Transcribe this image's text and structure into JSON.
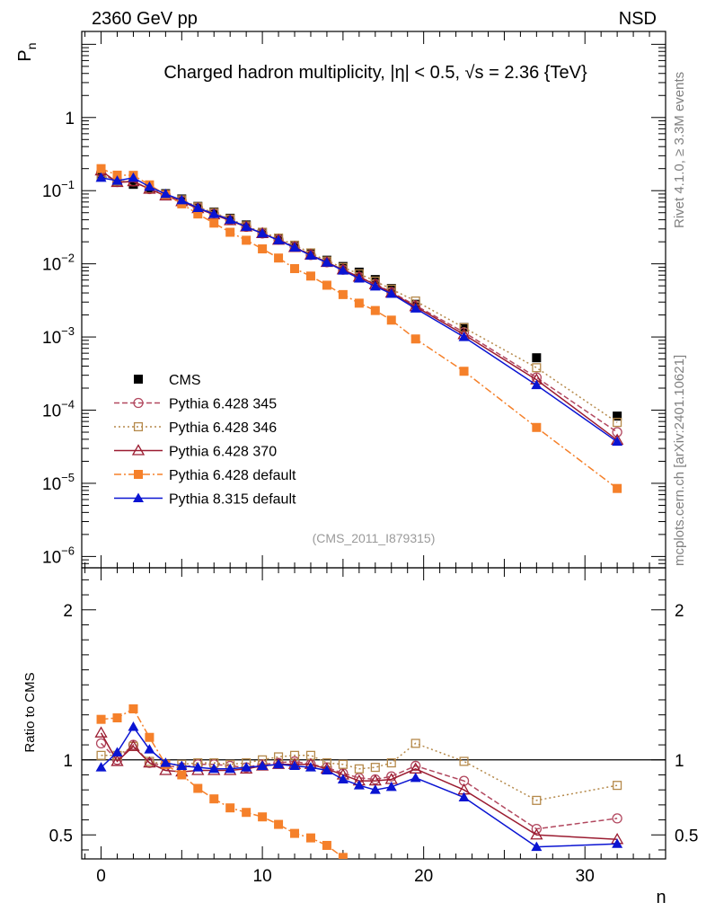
{
  "header": {
    "left": "2360 GeV pp",
    "right": "NSD",
    "side_rivet": "Rivet 4.1.0, ≥ 3.3M events",
    "side_mcplots": "mcplots.cern.ch [arXiv:2401.10621]",
    "analysis_id": "(CMS_2011_I879315)"
  },
  "chart_data": [
    {
      "type": "scatter",
      "title": "Charged hadron multiplicity, |η| < 0.5, √s = 2.36 {TeV}",
      "xlabel": "n",
      "ylabel": "Pn",
      "yscale": "log",
      "xlim": [
        -1.2,
        35
      ],
      "ylim": [
        7e-07,
        15
      ],
      "x_ticks": [
        0,
        10,
        20,
        30
      ],
      "y_ticks": [
        {
          "value": 1e-06,
          "label": "10^-6"
        },
        {
          "value": 1e-05,
          "label": "10^-5"
        },
        {
          "value": 0.0001,
          "label": "10^-4"
        },
        {
          "value": 0.001,
          "label": "10^-3"
        },
        {
          "value": 0.01,
          "label": "10^-2"
        },
        {
          "value": 0.1,
          "label": "10^-1"
        },
        {
          "value": 1,
          "label": "1"
        }
      ],
      "legend_position": "lower-left",
      "series": [
        {
          "name": "CMS",
          "color": "#000000",
          "line": "none",
          "marker": "square-filled",
          "x": [
            0,
            1,
            2,
            3,
            4,
            5,
            6,
            7,
            8,
            9,
            10,
            11,
            12,
            13,
            14,
            15,
            16,
            17,
            18,
            19.5,
            22.5,
            27,
            32
          ],
          "y": [
            0.158,
            0.131,
            0.122,
            0.107,
            0.091,
            0.077,
            0.061,
            0.051,
            0.042,
            0.034,
            0.027,
            0.022,
            0.0175,
            0.0137,
            0.0112,
            0.0092,
            0.0077,
            0.0061,
            0.0046,
            0.0028,
            0.00135,
            0.00052,
            8.3e-05
          ]
        },
        {
          "name": "Pythia 6.428 345",
          "color": "#b2485f",
          "line": "dashed",
          "marker": "circle-open",
          "x": [
            0,
            1,
            2,
            3,
            4,
            5,
            6,
            7,
            8,
            9,
            10,
            11,
            12,
            13,
            14,
            15,
            16,
            17,
            18,
            19.5,
            22.5,
            27,
            32
          ],
          "y": [
            0.176,
            0.131,
            0.134,
            0.105,
            0.087,
            0.073,
            0.059,
            0.049,
            0.04,
            0.032,
            0.026,
            0.0215,
            0.0172,
            0.0132,
            0.0105,
            0.0083,
            0.0066,
            0.0053,
            0.0041,
            0.0027,
            0.00116,
            0.00028,
            5e-05
          ]
        },
        {
          "name": "Pythia 6.428 346",
          "color": "#b5894a",
          "line": "dotted",
          "marker": "square-open",
          "x": [
            0,
            1,
            2,
            3,
            4,
            5,
            6,
            7,
            8,
            9,
            10,
            11,
            12,
            13,
            14,
            15,
            16,
            17,
            18,
            19.5,
            22.5,
            27,
            32
          ],
          "y": [
            0.163,
            0.135,
            0.133,
            0.106,
            0.088,
            0.075,
            0.06,
            0.05,
            0.041,
            0.033,
            0.027,
            0.0225,
            0.018,
            0.0141,
            0.0109,
            0.0089,
            0.0073,
            0.0058,
            0.0045,
            0.0031,
            0.00134,
            0.00038,
            6.8e-05
          ]
        },
        {
          "name": "Pythia 6.428 370",
          "color": "#9b1c31",
          "line": "solid",
          "marker": "triangle-open",
          "x": [
            0,
            1,
            2,
            3,
            4,
            5,
            6,
            7,
            8,
            9,
            10,
            11,
            12,
            13,
            14,
            15,
            16,
            17,
            18,
            19.5,
            22.5,
            27,
            32
          ],
          "y": [
            0.187,
            0.13,
            0.133,
            0.105,
            0.085,
            0.071,
            0.057,
            0.047,
            0.039,
            0.032,
            0.026,
            0.0211,
            0.0168,
            0.0132,
            0.0105,
            0.0083,
            0.0066,
            0.0052,
            0.004,
            0.0026,
            0.00108,
            0.00026,
            3.9e-05
          ]
        },
        {
          "name": "Pythia 6.428 default",
          "color": "#f5802a",
          "line": "dashdot",
          "marker": "square-filled",
          "x": [
            0,
            1,
            2,
            3,
            4,
            5,
            6,
            7,
            8,
            9,
            10,
            11,
            12,
            13,
            14,
            15,
            16,
            17,
            18,
            19.5,
            22.5,
            27,
            32
          ],
          "y": [
            0.2,
            0.163,
            0.162,
            0.12,
            0.088,
            0.066,
            0.048,
            0.036,
            0.027,
            0.021,
            0.016,
            0.012,
            0.0086,
            0.0068,
            0.0051,
            0.0038,
            0.0029,
            0.0023,
            0.0017,
            0.00094,
            0.00034,
            5.8e-05,
            8.5e-06
          ]
        },
        {
          "name": "Pythia 8.315 default",
          "color": "#0a14d2",
          "line": "solid",
          "marker": "triangle-filled",
          "x": [
            0,
            1,
            2,
            3,
            4,
            5,
            6,
            7,
            8,
            9,
            10,
            11,
            12,
            13,
            14,
            15,
            16,
            17,
            18,
            19.5,
            22.5,
            27,
            32
          ],
          "y": [
            0.15,
            0.137,
            0.15,
            0.113,
            0.09,
            0.074,
            0.058,
            0.048,
            0.04,
            0.032,
            0.026,
            0.021,
            0.0167,
            0.013,
            0.0104,
            0.0081,
            0.0063,
            0.0049,
            0.0039,
            0.00245,
            0.001,
            0.00022,
            3.7e-05
          ]
        }
      ]
    },
    {
      "type": "scatter",
      "title": "",
      "xlabel": "n",
      "ylabel": "Ratio to CMS",
      "xlim": [
        -1.2,
        35
      ],
      "ylim": [
        0.34,
        2.28
      ],
      "x_ticks": [
        0,
        10,
        20,
        30
      ],
      "y_ticks": [
        {
          "value": 0.5,
          "label": "0.5"
        },
        {
          "value": 1,
          "label": "1"
        },
        {
          "value": 2,
          "label": "2"
        }
      ],
      "reference_line": 1,
      "series": [
        {
          "name": "Pythia 6.428 345",
          "color": "#b2485f",
          "line": "dashed",
          "marker": "circle-open",
          "x": [
            0,
            1,
            2,
            3,
            4,
            5,
            6,
            7,
            8,
            9,
            10,
            11,
            12,
            13,
            14,
            15,
            16,
            17,
            18,
            19.5,
            22.5,
            27,
            32
          ],
          "y": [
            1.11,
            1.0,
            1.1,
            0.98,
            0.96,
            0.95,
            0.97,
            0.97,
            0.96,
            0.95,
            0.97,
            0.98,
            0.99,
            0.97,
            0.95,
            0.91,
            0.88,
            0.87,
            0.89,
            0.96,
            0.86,
            0.54,
            0.61
          ]
        },
        {
          "name": "Pythia 6.428 346",
          "color": "#b5894a",
          "line": "dotted",
          "marker": "square-open",
          "x": [
            0,
            1,
            2,
            3,
            4,
            5,
            6,
            7,
            8,
            9,
            10,
            11,
            12,
            13,
            14,
            15,
            16,
            17,
            18,
            19.5,
            22.5,
            27,
            32
          ],
          "y": [
            1.03,
            1.03,
            1.09,
            0.99,
            0.97,
            0.97,
            0.98,
            0.98,
            0.97,
            0.98,
            1.0,
            1.02,
            1.03,
            1.03,
            0.98,
            0.97,
            0.94,
            0.95,
            0.98,
            1.11,
            0.99,
            0.73,
            0.83
          ]
        },
        {
          "name": "Pythia 6.428 370",
          "color": "#9b1c31",
          "line": "solid",
          "marker": "triangle-open",
          "x": [
            0,
            1,
            2,
            3,
            4,
            5,
            6,
            7,
            8,
            9,
            10,
            11,
            12,
            13,
            14,
            15,
            16,
            17,
            18,
            19.5,
            22.5,
            27,
            32
          ],
          "y": [
            1.18,
            0.99,
            1.09,
            0.98,
            0.93,
            0.92,
            0.93,
            0.93,
            0.93,
            0.94,
            0.96,
            0.97,
            0.97,
            0.97,
            0.94,
            0.9,
            0.86,
            0.86,
            0.87,
            0.94,
            0.8,
            0.5,
            0.47
          ]
        },
        {
          "name": "Pythia 6.428 default",
          "color": "#f5802a",
          "line": "dashdot",
          "marker": "square-filled",
          "x": [
            0,
            1,
            2,
            3,
            4,
            5,
            6,
            7,
            8,
            9,
            10,
            11,
            12,
            13,
            14,
            15
          ],
          "y": [
            1.27,
            1.28,
            1.34,
            1.15,
            0.97,
            0.9,
            0.81,
            0.74,
            0.68,
            0.65,
            0.62,
            0.57,
            0.51,
            0.48,
            0.43,
            0.35
          ]
        },
        {
          "name": "Pythia 8.315 default",
          "color": "#0a14d2",
          "line": "solid",
          "marker": "triangle-filled",
          "x": [
            0,
            1,
            2,
            3,
            4,
            5,
            6,
            7,
            8,
            9,
            10,
            11,
            12,
            13,
            14,
            15,
            16,
            17,
            18,
            19.5,
            22.5,
            27,
            32
          ],
          "y": [
            0.95,
            1.05,
            1.22,
            1.07,
            0.98,
            0.96,
            0.95,
            0.94,
            0.94,
            0.95,
            0.96,
            0.97,
            0.96,
            0.95,
            0.93,
            0.87,
            0.83,
            0.8,
            0.82,
            0.88,
            0.75,
            0.42,
            0.44
          ]
        }
      ]
    }
  ]
}
